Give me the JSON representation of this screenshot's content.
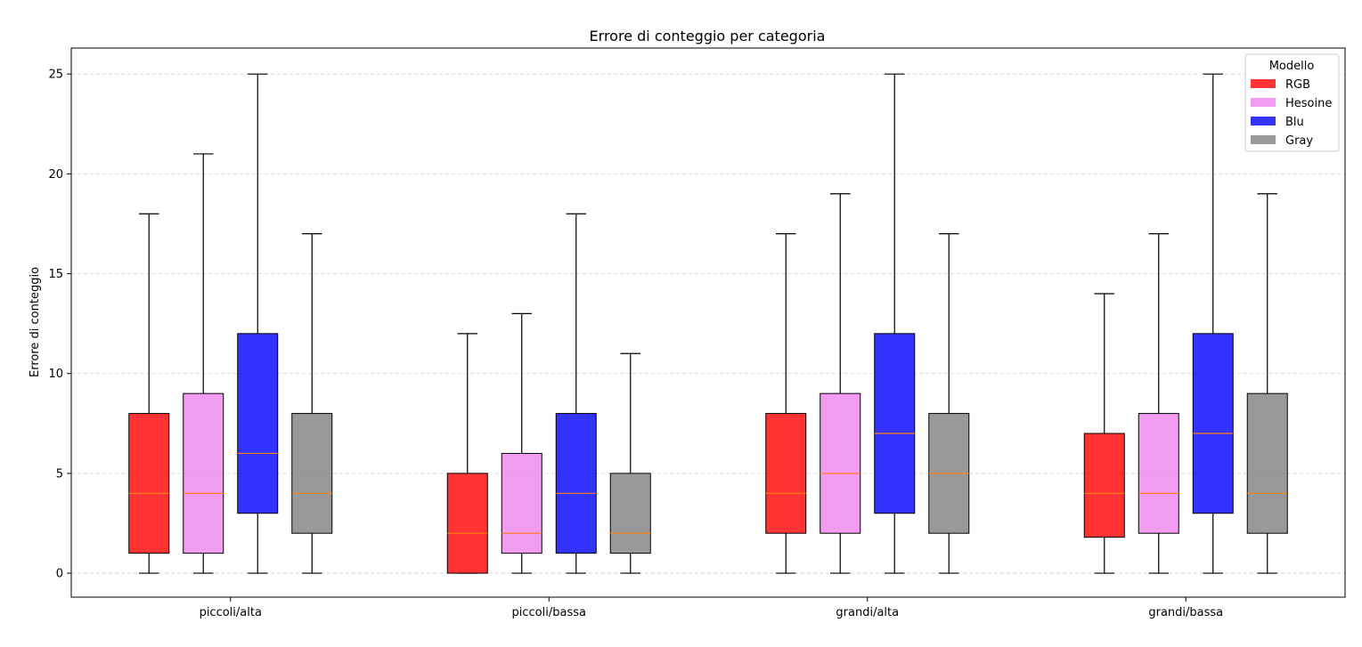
{
  "chart_data": {
    "type": "boxplot",
    "title": "Errore di conteggio per categoria",
    "xlabel": "",
    "ylabel": "Errore di conteggio",
    "ylim": [
      -1.2,
      26.3
    ],
    "yticks": [
      0,
      5,
      10,
      15,
      20,
      25
    ],
    "grid": "y-dashed",
    "categories": [
      "piccoli/alta",
      "piccoli/bassa",
      "grandi/alta",
      "grandi/bassa"
    ],
    "legend": {
      "title": "Modello",
      "position": "top-right"
    },
    "series": [
      {
        "name": "RGB",
        "color": "#ff0000",
        "boxes": [
          {
            "min": 0,
            "q1": 1,
            "median": 4,
            "q3": 8,
            "max": 18
          },
          {
            "min": 0,
            "q1": 0,
            "median": 2,
            "q3": 5,
            "max": 12
          },
          {
            "min": 0,
            "q1": 2,
            "median": 4,
            "q3": 8,
            "max": 17
          },
          {
            "min": 0,
            "q1": 1.8,
            "median": 4,
            "q3": 7,
            "max": 14
          }
        ]
      },
      {
        "name": "Hesoine",
        "color": "#ee82ee",
        "boxes": [
          {
            "min": 0,
            "q1": 1,
            "median": 4,
            "q3": 9,
            "max": 21
          },
          {
            "min": 0,
            "q1": 1,
            "median": 2,
            "q3": 6,
            "max": 13
          },
          {
            "min": 0,
            "q1": 2,
            "median": 5,
            "q3": 9,
            "max": 19
          },
          {
            "min": 0,
            "q1": 2,
            "median": 4,
            "q3": 8,
            "max": 17
          }
        ]
      },
      {
        "name": "Blu",
        "color": "#0000ff",
        "boxes": [
          {
            "min": 0,
            "q1": 3,
            "median": 6,
            "q3": 12,
            "max": 25
          },
          {
            "min": 0,
            "q1": 1,
            "median": 4,
            "q3": 8,
            "max": 18
          },
          {
            "min": 0,
            "q1": 3,
            "median": 7,
            "q3": 12,
            "max": 25
          },
          {
            "min": 0,
            "q1": 3,
            "median": 7,
            "q3": 12,
            "max": 25
          }
        ]
      },
      {
        "name": "Gray",
        "color": "#808080",
        "boxes": [
          {
            "min": 0,
            "q1": 2,
            "median": 4,
            "q3": 8,
            "max": 17
          },
          {
            "min": 0,
            "q1": 1,
            "median": 2,
            "q3": 5,
            "max": 11
          },
          {
            "min": 0,
            "q1": 2,
            "median": 5,
            "q3": 8,
            "max": 17
          },
          {
            "min": 0,
            "q1": 2,
            "median": 4,
            "q3": 9,
            "max": 19
          }
        ]
      }
    ],
    "median_color": "#ff7f0e",
    "box_opacity": 0.8
  }
}
